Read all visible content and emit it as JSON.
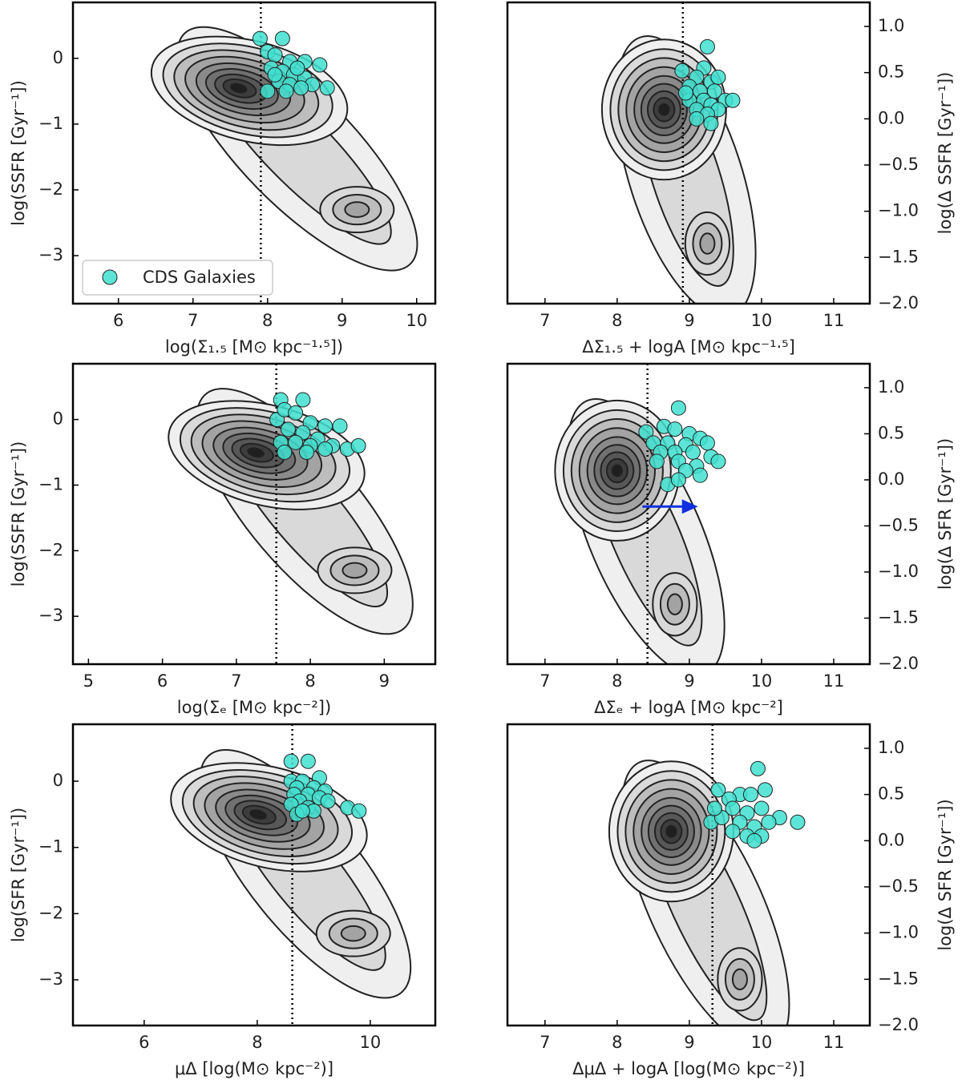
{
  "chart_data": [
    {
      "type": "scatter",
      "x_label": "log(Σ₁.₅ [M⊙ kpc⁻¹·⁵])",
      "y_label": "log(SSFR [Gyr⁻¹])",
      "y_axis_side": "left",
      "xlim": [
        5.39,
        10.25
      ],
      "ylim": [
        -3.73,
        0.85
      ],
      "xticks": [
        6,
        7,
        8,
        9,
        10
      ],
      "yticks": [
        {
          "value": -3,
          "label": "−3"
        },
        {
          "value": -2,
          "label": "−2"
        },
        {
          "value": -1,
          "label": "−1"
        },
        0
      ],
      "threshold": 7.91,
      "density_peaks": [
        {
          "x": 7.6,
          "y": -0.45
        },
        {
          "x": 9.2,
          "y": -2.3
        }
      ],
      "legend": "lower left",
      "series": [
        {
          "name": "CDS Galaxies",
          "color": "#40e0d0",
          "x": [
            7.9,
            8.2,
            8.0,
            8.1,
            8.3,
            8.5,
            8.7,
            8.05,
            8.2,
            8.35,
            8.5,
            8.15,
            8.3,
            8.6,
            8.8,
            8.0,
            8.25,
            8.45,
            8.1,
            8.4
          ],
          "values": [
            0.3,
            0.3,
            0.1,
            0.05,
            -0.05,
            -0.05,
            -0.1,
            -0.15,
            -0.2,
            -0.25,
            -0.3,
            -0.35,
            -0.4,
            -0.4,
            -0.45,
            -0.5,
            -0.5,
            -0.45,
            -0.25,
            -0.15
          ]
        }
      ]
    },
    {
      "type": "scatter",
      "x_label": "ΔΣ₁.₅ + logA [M⊙ kpc⁻¹·⁵]",
      "y_label": "log(Δ SSFR [Gyr⁻¹])",
      "y_axis_side": "right",
      "xlim": [
        6.48,
        11.5
      ],
      "ylim": [
        -2.0,
        1.26
      ],
      "xticks": [
        7,
        8,
        9,
        10,
        11
      ],
      "yticks": [
        {
          "value": -2,
          "label": "−2.0"
        },
        {
          "value": -1.5,
          "label": "−1.5"
        },
        {
          "value": -1,
          "label": "−1.0"
        },
        {
          "value": -0.5,
          "label": "−0.5"
        },
        {
          "value": 0,
          "label": "0.0"
        },
        0.5,
        {
          "value": 1,
          "label": "1.0"
        }
      ],
      "threshold": 8.91,
      "density_peaks": [
        {
          "x": 8.65,
          "y": 0.1
        },
        {
          "x": 9.25,
          "y": -1.35
        }
      ],
      "series": [
        {
          "color": "#40e0d0",
          "x": [
            8.9,
            9.25,
            9.2,
            9.1,
            9.3,
            9.4,
            9.0,
            9.15,
            9.35,
            9.2,
            9.5,
            9.6,
            9.0,
            9.3,
            9.1,
            9.4,
            9.25,
            9.1,
            9.3,
            8.95
          ],
          "values": [
            0.52,
            0.78,
            0.55,
            0.45,
            0.4,
            0.45,
            0.35,
            0.3,
            0.3,
            0.2,
            0.2,
            0.2,
            0.2,
            0.15,
            0.1,
            0.1,
            0.05,
            0.0,
            -0.05,
            0.28
          ]
        }
      ]
    },
    {
      "type": "scatter",
      "x_label": "log(Σₑ [M⊙ kpc⁻²])",
      "y_label": "log(SSFR [Gyr⁻¹])",
      "y_axis_side": "left",
      "xlim": [
        4.79,
        9.69
      ],
      "ylim": [
        -3.73,
        0.85
      ],
      "xticks": [
        5,
        6,
        7,
        8,
        9
      ],
      "yticks": [
        {
          "value": -3,
          "label": "−3"
        },
        {
          "value": -2,
          "label": "−2"
        },
        {
          "value": -1,
          "label": "−1"
        },
        0
      ],
      "threshold": 7.54,
      "density_peaks": [
        {
          "x": 7.25,
          "y": -0.5
        },
        {
          "x": 8.6,
          "y": -2.3
        }
      ],
      "series": [
        {
          "color": "#40e0d0",
          "x": [
            7.55,
            7.6,
            7.9,
            7.65,
            7.8,
            8.0,
            8.2,
            8.4,
            7.7,
            7.9,
            8.1,
            7.6,
            7.8,
            8.0,
            8.3,
            8.5,
            8.65,
            7.65,
            7.95,
            8.2
          ],
          "values": [
            0.0,
            0.3,
            0.3,
            0.15,
            0.1,
            -0.05,
            -0.1,
            -0.1,
            -0.15,
            -0.2,
            -0.3,
            -0.35,
            -0.35,
            -0.4,
            -0.4,
            -0.45,
            -0.4,
            -0.5,
            -0.5,
            -0.45
          ]
        }
      ]
    },
    {
      "type": "scatter",
      "x_label": "ΔΣₑ + logA [M⊙ kpc⁻²]",
      "y_label": "log(Δ SFR [Gyr⁻¹])",
      "y_axis_side": "right",
      "xlim": [
        6.48,
        11.5
      ],
      "ylim": [
        -2.0,
        1.26
      ],
      "xticks": [
        7,
        8,
        9,
        10,
        11
      ],
      "yticks": [
        {
          "value": -2,
          "label": "−2.0"
        },
        {
          "value": -1.5,
          "label": "−1.5"
        },
        {
          "value": -1,
          "label": "−1.0"
        },
        {
          "value": -0.5,
          "label": "−0.5"
        },
        {
          "value": 0,
          "label": "0.0"
        },
        0.5,
        {
          "value": 1,
          "label": "1.0"
        }
      ],
      "threshold": 8.42,
      "density_peaks": [
        {
          "x": 8.0,
          "y": 0.1
        },
        {
          "x": 8.8,
          "y": -1.35
        }
      ],
      "arrow": {
        "x": [
          8.35,
          9.12
        ],
        "y": -0.29,
        "color": "#1030e0"
      },
      "series": [
        {
          "color": "#40e0d0",
          "x": [
            8.4,
            8.65,
            8.85,
            8.8,
            9.0,
            9.15,
            8.5,
            8.7,
            8.95,
            9.25,
            8.6,
            8.8,
            9.05,
            9.3,
            9.4,
            8.55,
            8.85,
            9.1,
            8.95,
            9.15,
            8.7,
            8.85
          ],
          "values": [
            0.52,
            0.58,
            0.78,
            0.55,
            0.5,
            0.45,
            0.4,
            0.4,
            0.38,
            0.4,
            0.3,
            0.3,
            0.3,
            0.25,
            0.2,
            0.2,
            0.2,
            0.15,
            0.1,
            0.05,
            -0.05,
            0.0
          ]
        }
      ]
    },
    {
      "type": "scatter",
      "x_label": "μΔ [log(M⊙ kpc⁻²)]",
      "y_label": "log(SFR [Gyr⁻¹])",
      "y_axis_side": "left",
      "xlim": [
        4.74,
        11.15
      ],
      "ylim": [
        -3.69,
        0.86
      ],
      "xticks": [
        6,
        8,
        10
      ],
      "yticks": [
        {
          "value": -3,
          "label": "−3"
        },
        {
          "value": -2,
          "label": "−2"
        },
        {
          "value": -1,
          "label": "−1"
        },
        0
      ],
      "threshold": 8.62,
      "density_peaks": [
        {
          "x": 8.0,
          "y": -0.5
        },
        {
          "x": 9.7,
          "y": -2.3
        }
      ],
      "series": [
        {
          "color": "#40e0d0",
          "x": [
            8.6,
            8.9,
            8.6,
            8.8,
            9.1,
            8.7,
            9.0,
            9.2,
            8.65,
            8.9,
            9.1,
            8.75,
            9.25,
            8.6,
            8.9,
            9.6,
            9.8,
            8.7,
            9.0,
            8.8
          ],
          "values": [
            0.3,
            0.3,
            0.0,
            0.0,
            0.05,
            -0.1,
            -0.1,
            -0.15,
            -0.2,
            -0.2,
            -0.25,
            -0.3,
            -0.3,
            -0.35,
            -0.4,
            -0.4,
            -0.45,
            -0.5,
            -0.45,
            -0.45
          ]
        }
      ]
    },
    {
      "type": "scatter",
      "x_label": "ΔμΔ + logA [log(M⊙ kpc⁻²)]",
      "y_label": "log(Δ SFR [Gyr⁻¹])",
      "y_axis_side": "right",
      "xlim": [
        6.48,
        11.5
      ],
      "ylim": [
        -2.0,
        1.26
      ],
      "xticks": [
        7,
        8,
        9,
        10,
        11
      ],
      "yticks": [
        {
          "value": -2,
          "label": "−2.0"
        },
        {
          "value": -1.5,
          "label": "−1.5"
        },
        {
          "value": -1,
          "label": "−1.0"
        },
        {
          "value": -0.5,
          "label": "−0.5"
        },
        {
          "value": 0,
          "label": "0.0"
        },
        0.5,
        {
          "value": 1,
          "label": "1.0"
        }
      ],
      "threshold": 9.32,
      "density_peaks": [
        {
          "x": 8.75,
          "y": 0.1
        },
        {
          "x": 9.7,
          "y": -1.5
        }
      ],
      "series": [
        {
          "color": "#40e0d0",
          "x": [
            9.3,
            9.4,
            9.95,
            9.7,
            9.85,
            10.05,
            9.55,
            10.0,
            9.6,
            9.8,
            10.25,
            10.5,
            9.45,
            9.7,
            9.9,
            10.1,
            9.8,
            10.0,
            9.6,
            9.9,
            9.35
          ],
          "values": [
            0.2,
            0.55,
            0.78,
            0.5,
            0.5,
            0.55,
            0.45,
            0.35,
            0.35,
            0.3,
            0.25,
            0.2,
            0.25,
            0.2,
            0.15,
            0.2,
            0.05,
            0.05,
            0.1,
            0.0,
            0.35
          ]
        }
      ]
    }
  ]
}
